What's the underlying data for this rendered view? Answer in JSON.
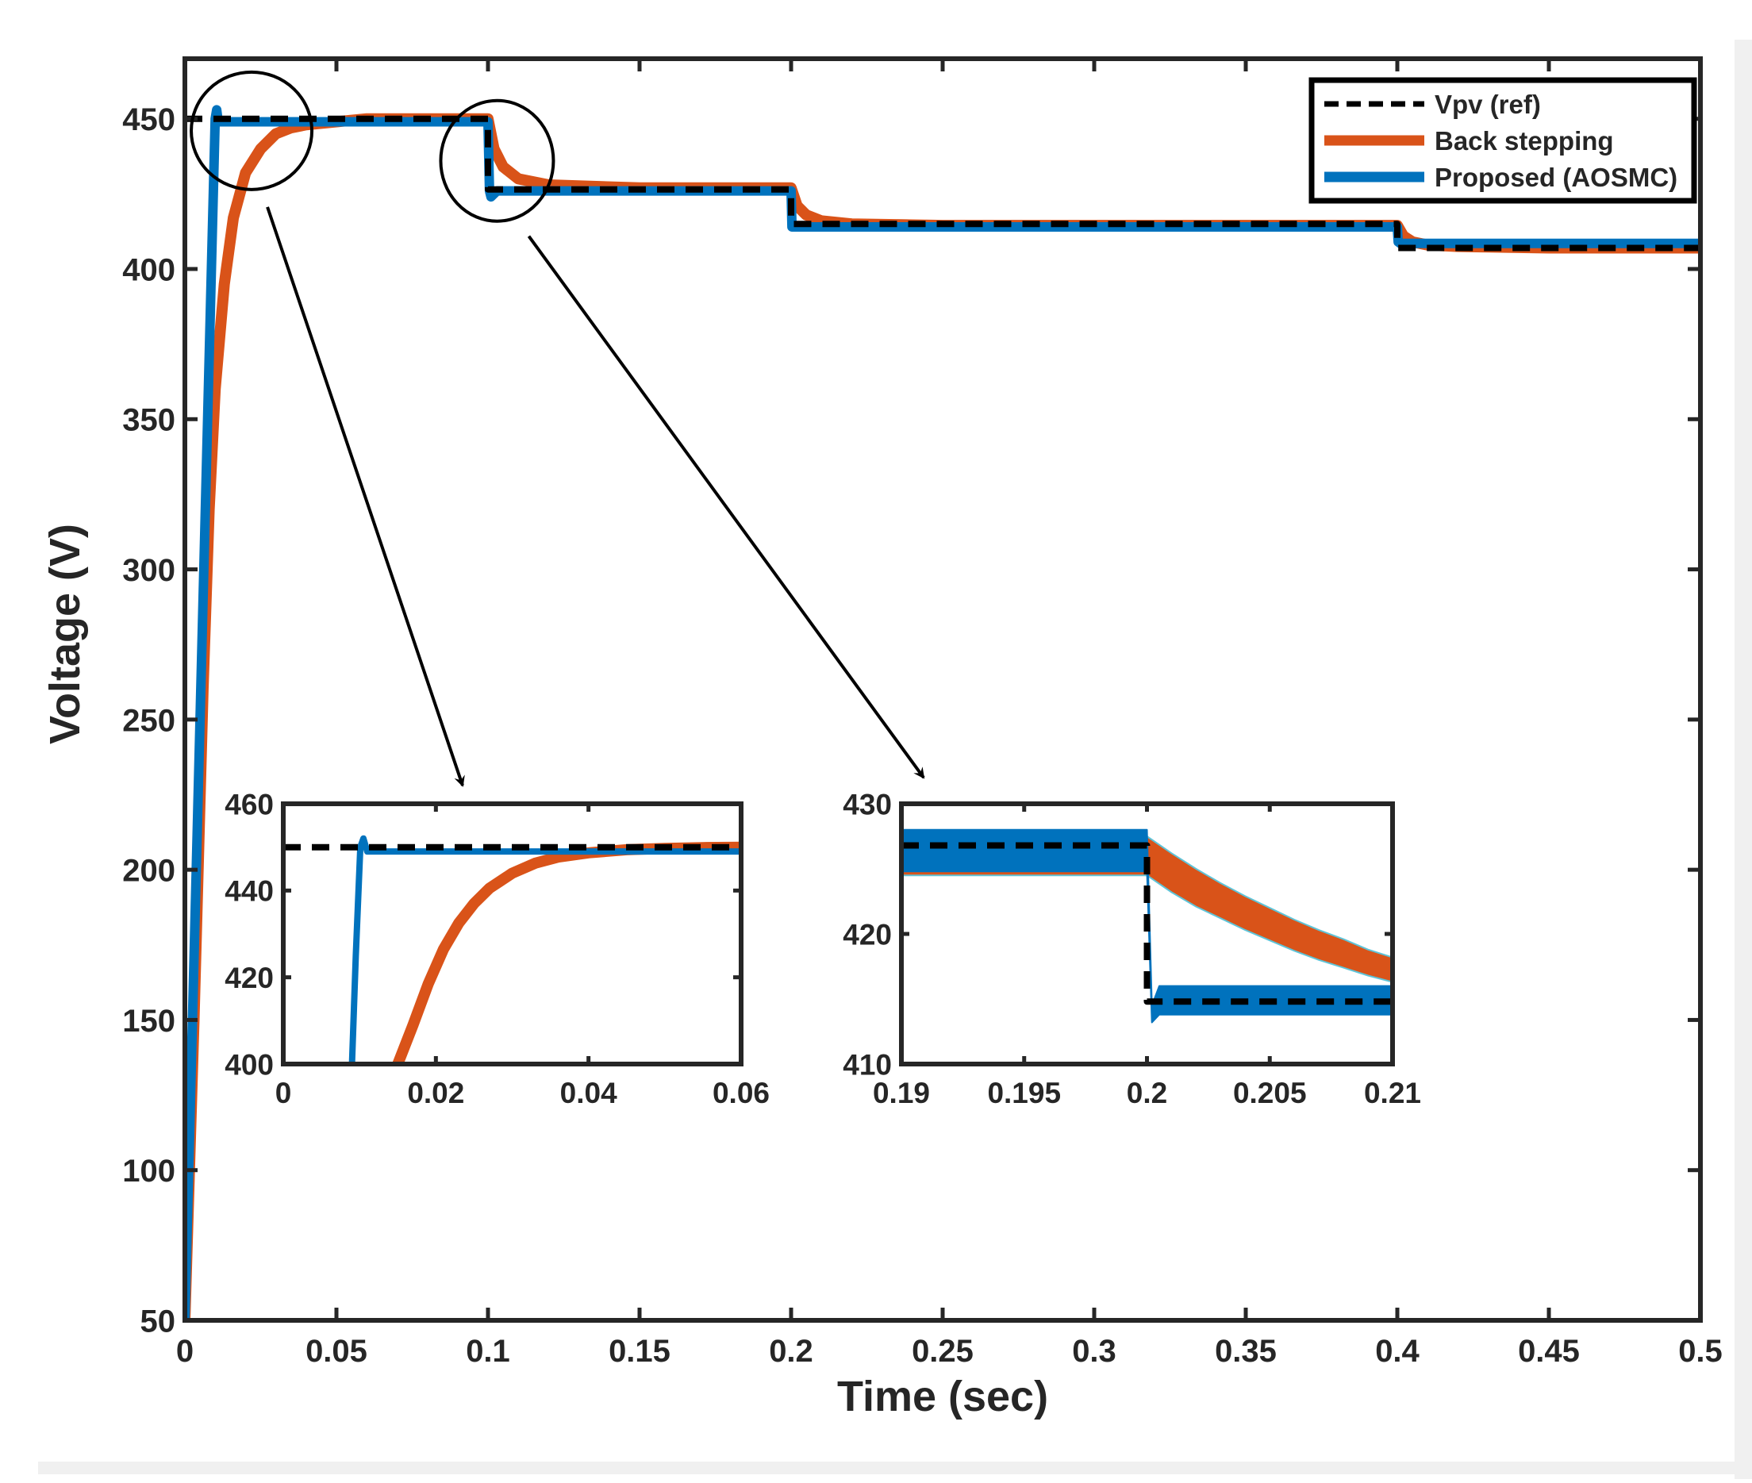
{
  "chart_data": [
    {
      "id": "main",
      "type": "line",
      "title": "",
      "xlabel": "Time (sec)",
      "ylabel": "Voltage (V)",
      "xlim": [
        0,
        0.5
      ],
      "ylim": [
        50,
        470
      ],
      "xticks": [
        0,
        0.05,
        0.1,
        0.15,
        0.2,
        0.25,
        0.3,
        0.35,
        0.4,
        0.45,
        0.5
      ],
      "xtick_labels": [
        "0",
        "0.05",
        "0.1",
        "0.15",
        "0.2",
        "0.25",
        "0.3",
        "0.35",
        "0.4",
        "0.45",
        "0.5"
      ],
      "yticks": [
        50,
        100,
        150,
        200,
        250,
        300,
        350,
        400,
        450
      ],
      "ytick_labels": [
        "50",
        "100",
        "150",
        "200",
        "250",
        "300",
        "350",
        "400",
        "450"
      ],
      "grid": false,
      "legend_position": "top-right",
      "series": [
        {
          "name": "Vpv (ref)",
          "color": "#000000",
          "style": "dashed",
          "x": [
            0,
            0.1,
            0.1,
            0.2,
            0.2,
            0.4,
            0.4,
            0.5
          ],
          "y": [
            450,
            450,
            426.5,
            426.5,
            415,
            415,
            407,
            407
          ]
        },
        {
          "name": "Back stepping",
          "color": "#D95319",
          "style": "solid-band",
          "x": [
            0,
            0.003,
            0.006,
            0.008,
            0.01,
            0.013,
            0.016,
            0.02,
            0.025,
            0.03,
            0.035,
            0.04,
            0.05,
            0.06,
            0.08,
            0.1,
            0.102,
            0.105,
            0.11,
            0.12,
            0.15,
            0.2,
            0.202,
            0.205,
            0.21,
            0.22,
            0.25,
            0.3,
            0.35,
            0.4,
            0.402,
            0.405,
            0.41,
            0.42,
            0.45,
            0.5
          ],
          "y": [
            50,
            150,
            260,
            320,
            360,
            395,
            417,
            432,
            440,
            445,
            447,
            448,
            449,
            450,
            450,
            450,
            440,
            434,
            430,
            428,
            427,
            427,
            421,
            418,
            416,
            415,
            414.5,
            414.5,
            414.5,
            414.5,
            411,
            409,
            408,
            407.5,
            407,
            407
          ]
        },
        {
          "name": "Proposed (AOSMC)",
          "color": "#0072BD",
          "style": "solid-band",
          "x": [
            0,
            0.01,
            0.0105,
            0.011,
            0.02,
            0.05,
            0.1,
            0.1005,
            0.101,
            0.103,
            0.11,
            0.15,
            0.2,
            0.2003,
            0.201,
            0.21,
            0.25,
            0.3,
            0.35,
            0.4,
            0.4003,
            0.401,
            0.45,
            0.5
          ],
          "y": [
            50,
            450,
            453,
            449,
            449,
            449,
            449,
            426,
            424,
            426,
            426,
            426,
            426,
            414,
            414,
            414,
            414,
            414,
            414,
            414,
            409,
            408.5,
            408.5,
            408.5
          ]
        }
      ],
      "annotations": [
        {
          "type": "circle",
          "target_x": 0.022,
          "target_y": 446
        },
        {
          "type": "circle",
          "target_x": 0.103,
          "target_y": 436
        }
      ]
    },
    {
      "id": "inset1",
      "type": "line",
      "title": "",
      "xlim": [
        0,
        0.06
      ],
      "ylim": [
        400,
        460
      ],
      "xticks": [
        0,
        0.02,
        0.04,
        0.06
      ],
      "xtick_labels": [
        "0",
        "0.02",
        "0.04",
        "0.06"
      ],
      "yticks": [
        400,
        420,
        440,
        460
      ],
      "ytick_labels": [
        "400",
        "420",
        "440",
        "460"
      ],
      "series": [
        {
          "name": "Vpv (ref)",
          "color": "#000000",
          "style": "dashed",
          "x": [
            0,
            0.06
          ],
          "y": [
            450,
            450
          ]
        },
        {
          "name": "Back stepping",
          "color": "#D95319",
          "style": "solid-band",
          "x": [
            0.015,
            0.017,
            0.019,
            0.021,
            0.023,
            0.025,
            0.027,
            0.03,
            0.033,
            0.036,
            0.04,
            0.045,
            0.05,
            0.055,
            0.06
          ],
          "y": [
            400,
            409,
            418.5,
            426.5,
            432.5,
            437,
            440.5,
            444,
            446.3,
            447.7,
            448.7,
            449.4,
            449.7,
            449.9,
            450
          ]
        },
        {
          "name": "Proposed (AOSMC)",
          "color": "#0072BD",
          "style": "solid",
          "x": [
            0.009,
            0.0095,
            0.0101,
            0.0105,
            0.011,
            0.012,
            0.02,
            0.03,
            0.04,
            0.05,
            0.06
          ],
          "y": [
            400,
            425,
            450,
            452,
            449,
            449,
            449,
            449,
            449,
            449,
            449
          ]
        }
      ]
    },
    {
      "id": "inset2",
      "type": "line",
      "title": "",
      "xlim": [
        0.19,
        0.21
      ],
      "ylim": [
        410,
        430
      ],
      "xticks": [
        0.19,
        0.195,
        0.2,
        0.205,
        0.21
      ],
      "xtick_labels": [
        "0.19",
        "0.195",
        "0.2",
        "0.205",
        "0.21"
      ],
      "yticks": [
        410,
        420,
        430
      ],
      "ytick_labels": [
        "410",
        "420",
        "430"
      ],
      "series": [
        {
          "name": "Vpv (ref)",
          "color": "#000000",
          "style": "dashed",
          "x": [
            0.19,
            0.2,
            0.2,
            0.21
          ],
          "y": [
            426.8,
            426.8,
            414.8,
            414.8
          ]
        },
        {
          "name": "Back stepping",
          "color": "#D95319",
          "style": "band",
          "x": [
            0.19,
            0.2,
            0.201,
            0.202,
            0.203,
            0.204,
            0.205,
            0.206,
            0.207,
            0.208,
            0.209,
            0.21
          ],
          "y_upper": [
            427.5,
            427.5,
            426.2,
            425,
            423.9,
            422.9,
            422,
            421.1,
            420.3,
            419.6,
            418.8,
            418.2
          ],
          "y_lower": [
            424.5,
            424.5,
            423.2,
            422.1,
            421.2,
            420.3,
            419.5,
            418.7,
            418,
            417.4,
            416.8,
            416.3
          ]
        },
        {
          "name": "Proposed (AOSMC)",
          "color": "#0072BD",
          "style": "band",
          "x": [
            0.19,
            0.2,
            0.2002,
            0.2005,
            0.21
          ],
          "y_upper": [
            428,
            428,
            414.5,
            416,
            416
          ],
          "y_lower": [
            424.8,
            424.8,
            413.2,
            413.8,
            413.8
          ]
        }
      ]
    }
  ],
  "legend": {
    "items": [
      {
        "label": "Vpv (ref)",
        "color": "#000000",
        "style": "dashed"
      },
      {
        "label": "Back stepping",
        "color": "#D95319",
        "style": "solid"
      },
      {
        "label": "Proposed (AOSMC)",
        "color": "#0072BD",
        "style": "solid"
      }
    ]
  }
}
